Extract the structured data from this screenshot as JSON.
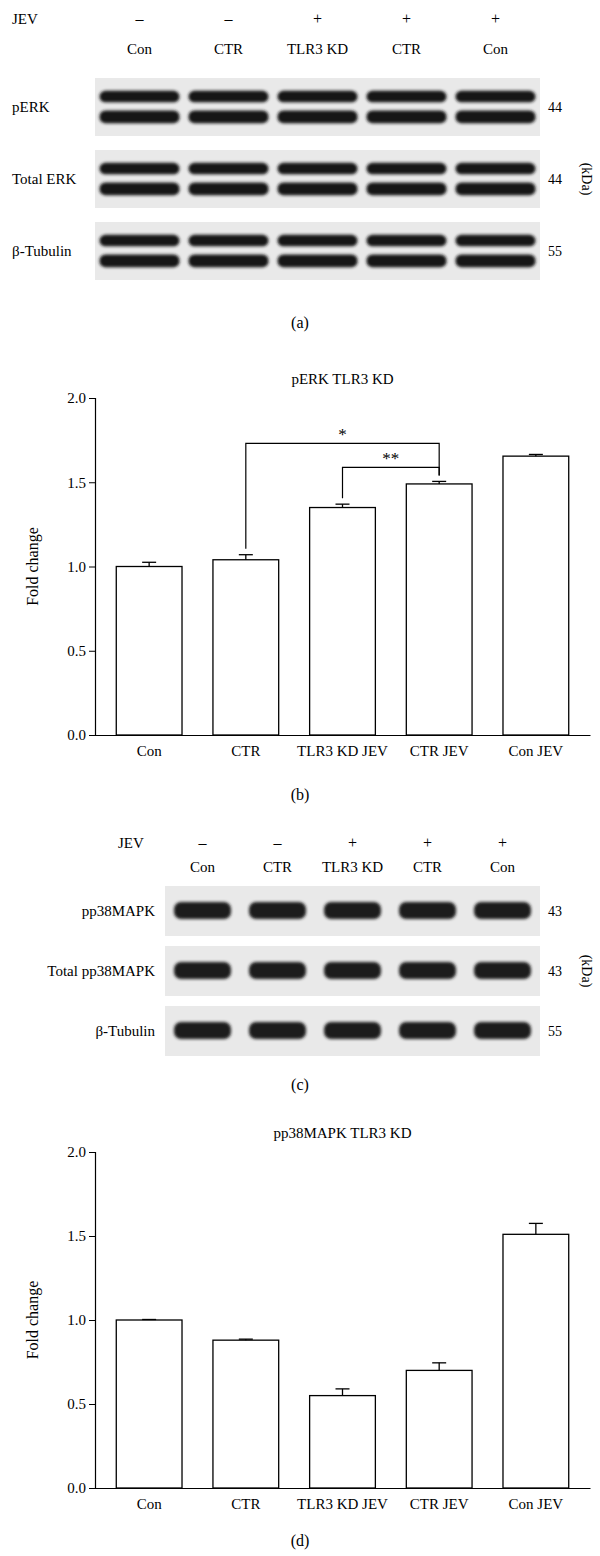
{
  "chart_data": [
    {
      "type": "blot",
      "panel_label": "(a)",
      "treatment": {
        "name": "JEV",
        "values": [
          "–",
          "–",
          "+",
          "+",
          "+"
        ]
      },
      "lanes": [
        "Con",
        "CTR",
        "TLR3 KD",
        "CTR",
        "Con"
      ],
      "rows": [
        {
          "name": "pERK",
          "kda": 44
        },
        {
          "name": "Total ERK",
          "kda": 44
        },
        {
          "name": "β-Tubulin",
          "kda": 55
        }
      ],
      "unit": "(kDa)"
    },
    {
      "type": "bar",
      "title": "pERK TLR3 KD",
      "y_label": "Fold change",
      "panel_label": "(b)",
      "categories": [
        "Con",
        "CTR",
        "TLR3 KD JEV",
        "CTR JEV",
        "Con JEV"
      ],
      "values": [
        1.0,
        1.04,
        1.35,
        1.49,
        1.655
      ],
      "errors": [
        0.025,
        0.03,
        0.02,
        0.015,
        0.01
      ],
      "color": "#ffffff",
      "ylim": [
        0,
        2
      ],
      "yticks": [
        {
          "value": 0,
          "label": "0.0"
        },
        0.5,
        {
          "value": 1,
          "label": "1.0"
        },
        1.5,
        {
          "value": 2,
          "label": "2.0"
        }
      ],
      "annotations": [
        {
          "text": "*",
          "between": [
            "CTR",
            "CTR JEV"
          ]
        },
        {
          "text": "**",
          "between": [
            "TLR3 KD JEV",
            "CTR JEV"
          ]
        }
      ]
    },
    {
      "type": "blot",
      "panel_label": "(c)",
      "treatment": {
        "name": "JEV",
        "values": [
          "–",
          "–",
          "+",
          "+",
          "+"
        ]
      },
      "lanes": [
        "Con",
        "CTR",
        "TLR3 KD",
        "CTR",
        "Con"
      ],
      "rows": [
        {
          "name": "pp38MAPK",
          "kda": 43
        },
        {
          "name": "Total pp38MAPK",
          "kda": 43
        },
        {
          "name": "β-Tubulin",
          "kda": 55
        }
      ],
      "unit": "(kDa)"
    },
    {
      "type": "bar",
      "title": "pp38MAPK TLR3 KD",
      "y_label": "Fold change",
      "panel_label": "(d)",
      "categories": [
        "Con",
        "CTR",
        "TLR3 KD JEV",
        "CTR JEV",
        "Con JEV"
      ],
      "values": [
        1.0,
        0.88,
        0.55,
        0.7,
        1.51
      ],
      "errors": [
        0.003,
        0.006,
        0.04,
        0.045,
        0.065
      ],
      "color": "#ffffff",
      "ylim": [
        0,
        2
      ],
      "yticks": [
        {
          "value": 0,
          "label": "0.0"
        },
        0.5,
        {
          "value": 1,
          "label": "1.0"
        },
        1.5,
        {
          "value": 2,
          "label": "2.0"
        }
      ]
    }
  ]
}
